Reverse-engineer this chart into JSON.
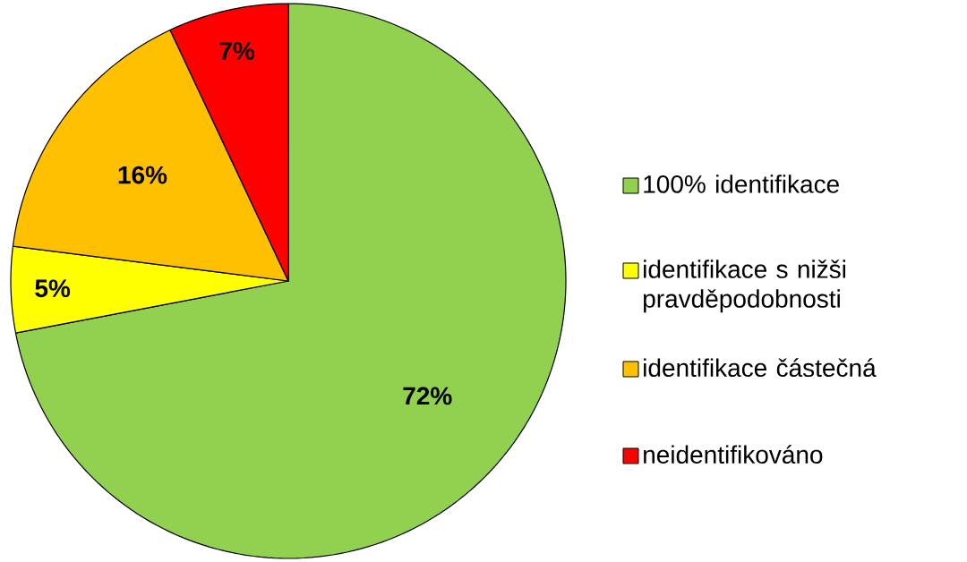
{
  "chart_data": {
    "type": "pie",
    "categories": [
      "100% identifikace",
      "identifikace s nižši pravděpodobnosti",
      "identifikace částečná",
      "neidentifikováno"
    ],
    "values": [
      72,
      5,
      16,
      7
    ],
    "colors": [
      "#92d050",
      "#ffff00",
      "#ffc000",
      "#ff0000"
    ],
    "value_labels": [
      "72%",
      "5%",
      "16%",
      "7%"
    ],
    "legend": "right"
  }
}
